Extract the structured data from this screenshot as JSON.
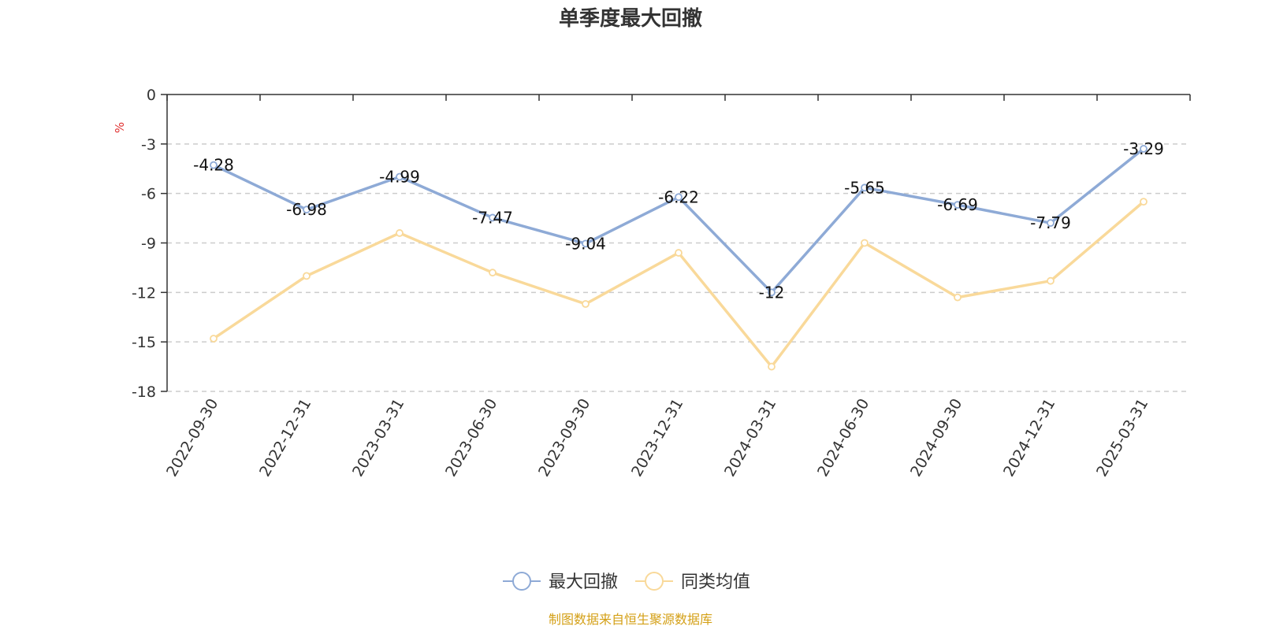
{
  "chart_data": {
    "type": "line",
    "title": "单季度最大回撤",
    "ylabel": "%",
    "xlabel": "",
    "ylim": [
      -18,
      0
    ],
    "yticks": [
      0,
      -3,
      -6,
      -9,
      -12,
      -15,
      -18
    ],
    "categories": [
      "2022-09-30",
      "2022-12-31",
      "2023-03-31",
      "2023-06-30",
      "2023-09-30",
      "2023-12-31",
      "2024-03-31",
      "2024-06-30",
      "2024-09-30",
      "2024-12-31",
      "2025-03-31"
    ],
    "series": [
      {
        "name": "最大回撤",
        "color": "#8eaad6",
        "values": [
          -4.28,
          -6.98,
          -4.99,
          -7.47,
          -9.04,
          -6.22,
          -12,
          -5.65,
          -6.69,
          -7.79,
          -3.29
        ],
        "labels": [
          "-4.28",
          "-6.98",
          "-4.99",
          "-7.47",
          "-9.04",
          "-6.22",
          "-12",
          "-5.65",
          "-6.69",
          "-7.79",
          "-3.29"
        ],
        "show_labels": true
      },
      {
        "name": "同类均值",
        "color": "#f9d99a",
        "values": [
          -14.8,
          -11.0,
          -8.4,
          -10.8,
          -12.7,
          -9.6,
          -16.5,
          -9.0,
          -12.3,
          -11.3,
          -6.5
        ],
        "show_labels": false
      }
    ],
    "grid": true,
    "legend_position": "bottom-center"
  },
  "source_note": "制图数据来自恒生聚源数据库",
  "colors": {
    "source_text": "#d4a017",
    "unit_label": "#e03030",
    "axis": "#333333",
    "grid": "#cccccc"
  }
}
